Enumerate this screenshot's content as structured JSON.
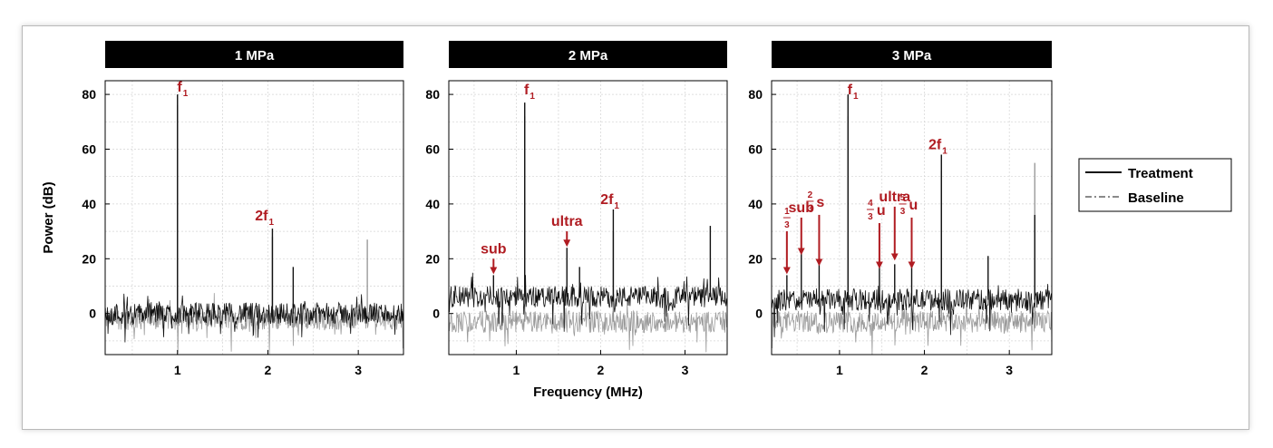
{
  "colors": {
    "treatment": "#111111",
    "baseline": "#8a8a8a",
    "annotation": "#b01c22",
    "header_bg": "#000000",
    "header_text": "#ffffff",
    "grid": "#d4d4d4"
  },
  "ylabel": "Power (dB)",
  "xlabel": "Frequency (MHz)",
  "legend": {
    "position": "right",
    "items": [
      "Treatment",
      "Baseline"
    ]
  },
  "chart_data": [
    {
      "type": "line",
      "title": "1 MPa",
      "xlim": [
        0.2,
        3.5
      ],
      "ylim": [
        -15,
        85
      ],
      "xticks": [
        1,
        2,
        3
      ],
      "yticks": [
        0,
        20,
        40,
        60,
        80
      ],
      "grid": true,
      "series": [
        {
          "name": "Treatment",
          "noise_mean": 0,
          "noise_spread": 4,
          "peaks": [
            {
              "x": 1.0,
              "y": 80
            },
            {
              "x": 2.05,
              "y": 31
            },
            {
              "x": 2.28,
              "y": 17
            }
          ]
        },
        {
          "name": "Baseline",
          "noise_mean": -2,
          "noise_spread": 4,
          "peaks": [
            {
              "x": 1.0,
              "y": 76
            },
            {
              "x": 2.05,
              "y": 28
            },
            {
              "x": 3.1,
              "y": 27
            }
          ]
        }
      ],
      "annotations": [
        {
          "label": "f",
          "sub": "1",
          "x": 1.05,
          "y": 81
        },
        {
          "label": "2f",
          "sub": "1",
          "x": 2.0,
          "y": 34
        }
      ]
    },
    {
      "type": "line",
      "title": "2 MPa",
      "xlim": [
        0.2,
        3.5
      ],
      "ylim": [
        -15,
        85
      ],
      "xticks": [
        1,
        2,
        3
      ],
      "yticks": [
        0,
        20,
        40,
        60,
        80
      ],
      "grid": true,
      "series": [
        {
          "name": "Treatment",
          "noise_mean": 6,
          "noise_spread": 4,
          "peaks": [
            {
              "x": 0.73,
              "y": 14
            },
            {
              "x": 1.1,
              "y": 77
            },
            {
              "x": 1.6,
              "y": 24
            },
            {
              "x": 1.75,
              "y": 17
            },
            {
              "x": 2.15,
              "y": 38
            },
            {
              "x": 3.3,
              "y": 32
            }
          ]
        },
        {
          "name": "Baseline",
          "noise_mean": -3,
          "noise_spread": 4,
          "peaks": [
            {
              "x": 1.1,
              "y": 72
            },
            {
              "x": 2.15,
              "y": 30
            }
          ]
        }
      ],
      "annotations": [
        {
          "label": "f",
          "sub": "1",
          "x": 1.15,
          "y": 80
        },
        {
          "label": "sub",
          "x": 0.73,
          "y": 22,
          "arrow_to": 15
        },
        {
          "label": "ultra",
          "x": 1.6,
          "y": 32,
          "arrow_to": 25
        },
        {
          "label": "2f",
          "sub": "1",
          "x": 2.15,
          "y": 40
        }
      ]
    },
    {
      "type": "line",
      "title": "3 MPa",
      "xlim": [
        0.2,
        3.5
      ],
      "ylim": [
        -15,
        85
      ],
      "xticks": [
        1,
        2,
        3
      ],
      "yticks": [
        0,
        20,
        40,
        60,
        80
      ],
      "grid": true,
      "series": [
        {
          "name": "Treatment",
          "noise_mean": 5,
          "noise_spread": 4,
          "peaks": [
            {
              "x": 0.38,
              "y": 14
            },
            {
              "x": 0.55,
              "y": 22
            },
            {
              "x": 0.76,
              "y": 18
            },
            {
              "x": 1.1,
              "y": 80
            },
            {
              "x": 1.47,
              "y": 17
            },
            {
              "x": 1.65,
              "y": 18
            },
            {
              "x": 1.85,
              "y": 17
            },
            {
              "x": 2.2,
              "y": 58
            },
            {
              "x": 2.75,
              "y": 21
            },
            {
              "x": 3.3,
              "y": 36
            }
          ]
        },
        {
          "name": "Baseline",
          "noise_mean": -3,
          "noise_spread": 4,
          "peaks": [
            {
              "x": 1.1,
              "y": 72
            },
            {
              "x": 2.2,
              "y": 52
            },
            {
              "x": 3.3,
              "y": 55
            }
          ]
        }
      ],
      "annotations": [
        {
          "label": "f",
          "sub": "1",
          "x": 1.15,
          "y": 80
        },
        {
          "label": "2f",
          "sub": "1",
          "x": 2.2,
          "y": 60
        },
        {
          "label": "sub",
          "x": 0.55,
          "y": 37,
          "arrow_to": 22
        },
        {
          "label": "ultra",
          "x": 1.65,
          "y": 41,
          "arrow_to": 20
        },
        {
          "label": "s",
          "num": "2",
          "den": "3",
          "x": 0.76,
          "y": 39,
          "arrow_to": 18
        },
        {
          "label": "",
          "num": "1",
          "den": "3",
          "x": 0.38,
          "y": 33,
          "arrow_to": 15
        },
        {
          "label": "u",
          "num": "4",
          "den": "3",
          "x": 1.47,
          "y": 36,
          "arrow_to": 17
        },
        {
          "label": "u",
          "num": "5",
          "den": "3",
          "x": 1.85,
          "y": 38,
          "arrow_to": 17
        }
      ]
    }
  ]
}
